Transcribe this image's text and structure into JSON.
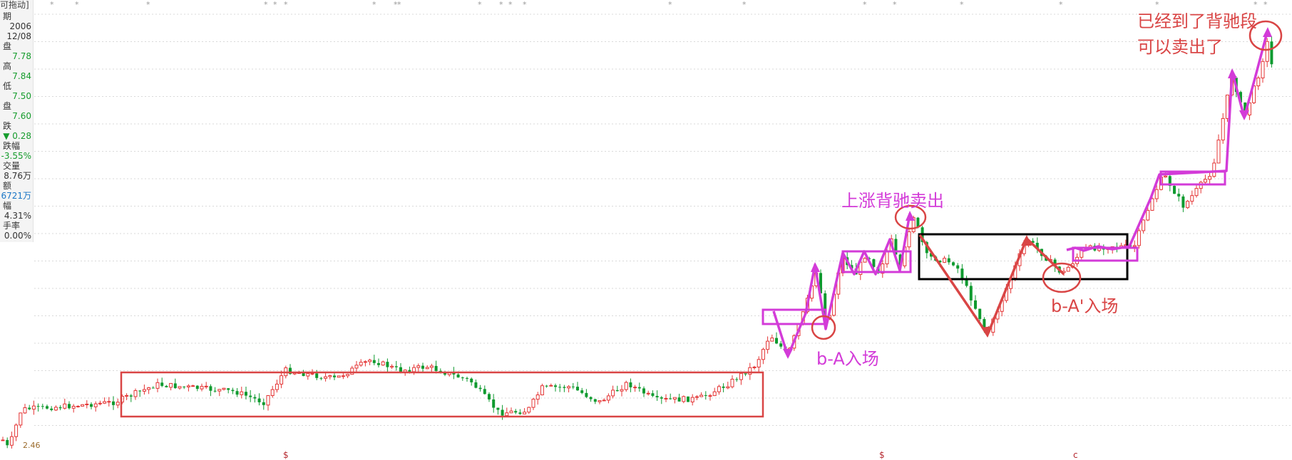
{
  "panel": {
    "title": "可拖动]",
    "rows": [
      {
        "label": "期",
        "value": ""
      },
      {
        "label": "",
        "value": "2006"
      },
      {
        "label": "",
        "value": "12/08"
      },
      {
        "label": "盘",
        "value": ""
      },
      {
        "label": "",
        "value": "7.78"
      },
      {
        "label": "高",
        "value": ""
      },
      {
        "label": "",
        "value": "7.84"
      },
      {
        "label": "低",
        "value": ""
      },
      {
        "label": "",
        "value": "7.50"
      },
      {
        "label": "盘",
        "value": ""
      },
      {
        "label": "",
        "value": "7.60"
      },
      {
        "label": "跌",
        "value": ""
      },
      {
        "label": "",
        "value": "▼ 0.28"
      },
      {
        "label": "跌幅",
        "value": ""
      },
      {
        "label": "",
        "value": "-3.55%"
      },
      {
        "label": "交量",
        "value": ""
      },
      {
        "label": "",
        "value": "8.76万"
      },
      {
        "label": "额",
        "value": ""
      },
      {
        "label": "",
        "value": "6721万"
      },
      {
        "label": "幅",
        "value": ""
      },
      {
        "label": "",
        "value": "4.31%"
      },
      {
        "label": "手率",
        "value": ""
      },
      {
        "label": "",
        "value": "0.00%"
      }
    ]
  },
  "colors": {
    "up": "#e43434",
    "down": "#0f9a2f",
    "mark": "#c8008c",
    "magenta": "#d33bd8",
    "red_box": "#d94545",
    "black_box": "#000000",
    "panel_green": "#159c2c",
    "panel_blue": "#1a76c6",
    "panel_gray": "#333333"
  },
  "annotations": {
    "sell_up": "上涨背驰卖出",
    "entry_ba": "b-A入场",
    "entry_ba2": "b-A'入场",
    "reached_line1": "已经到了背驰段",
    "reached_line2": "可以卖出了",
    "low_label": "2.46"
  },
  "chart_data": {
    "type": "candlestick",
    "title": "",
    "xlabel": "",
    "ylabel": "",
    "y_range_approx": [
      2.3,
      8.2
    ],
    "low_marker": 2.46,
    "last_bar": {
      "date": "2006-12-08",
      "open": 7.78,
      "high": 7.84,
      "low": 7.5,
      "close": 7.6,
      "change": -0.28,
      "change_pct": -3.55
    },
    "note_values": "candles are generated as a stylized price path; only the labelled values above are read from the image"
  }
}
